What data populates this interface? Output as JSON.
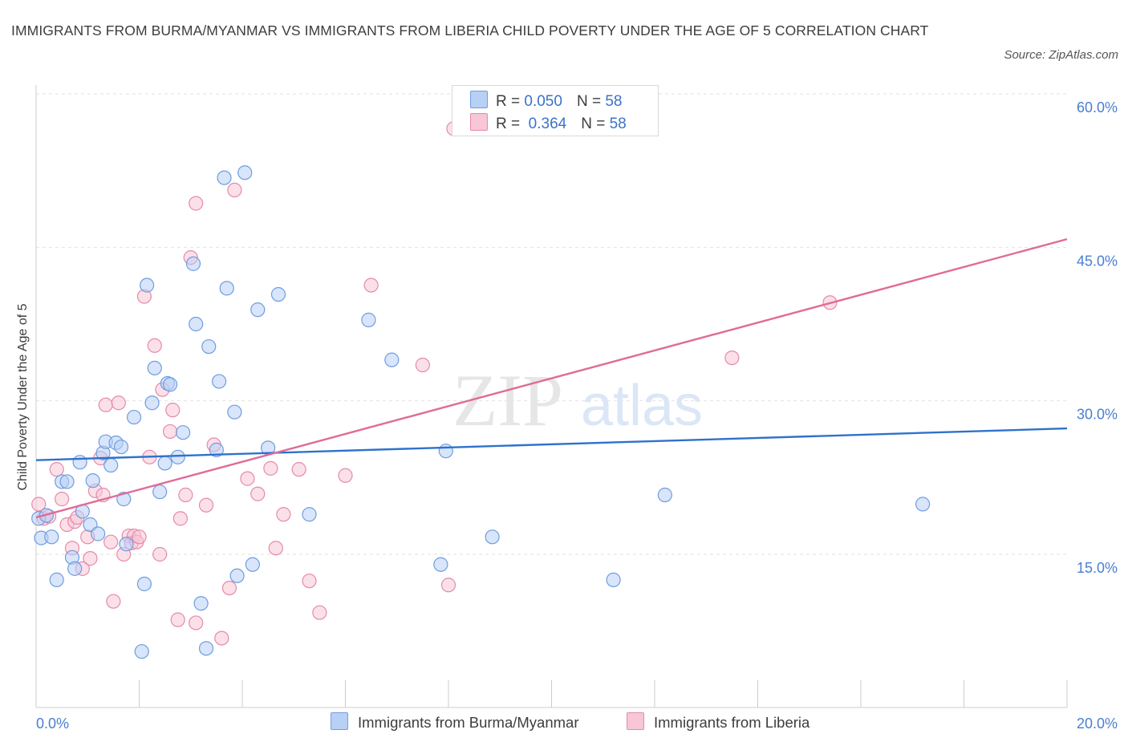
{
  "title": "IMMIGRANTS FROM BURMA/MYANMAR VS IMMIGRANTS FROM LIBERIA CHILD POVERTY UNDER THE AGE OF 5 CORRELATION CHART",
  "source": "Source: ZipAtlas.com",
  "watermark": {
    "zip": "ZIP",
    "atlas": "atlas"
  },
  "colors": {
    "burma_fill": "#b8d0f5",
    "burma_stroke": "#6f9de0",
    "burma_line": "#2e72cc",
    "liberia_fill": "#f8c6d6",
    "liberia_stroke": "#e58aaa",
    "liberia_line": "#e06b97",
    "grid": "#e2e2e2",
    "axis": "#cccccc",
    "tick_label": "#4a7fd0"
  },
  "legend": {
    "rows": [
      {
        "r_label": "R =",
        "r_value": "0.050",
        "n_label": "N =",
        "n_value": "58"
      },
      {
        "r_label": "R =",
        "r_value": "0.364",
        "n_label": "N =",
        "n_value": "58"
      }
    ]
  },
  "chart_data": {
    "type": "scatter",
    "title": "IMMIGRANTS FROM BURMA/MYANMAR VS IMMIGRANTS FROM LIBERIA CHILD POVERTY UNDER THE AGE OF 5 CORRELATION CHART",
    "xlabel": "",
    "ylabel": "Child Poverty Under the Age of 5",
    "xlim": [
      0,
      20
    ],
    "ylim": [
      0,
      63
    ],
    "x_ticks": [
      "0.0%",
      "20.0%"
    ],
    "y_ticks": [
      {
        "value": 15,
        "label": "15.0%"
      },
      {
        "value": 30,
        "label": "30.0%"
      },
      {
        "value": 45,
        "label": "45.0%"
      },
      {
        "value": 60,
        "label": "60.0%"
      }
    ],
    "grid": true,
    "legend_position": "bottom",
    "series": [
      {
        "name": "Immigrants from Burma/Myanmar",
        "trend": {
          "x": [
            0,
            20
          ],
          "y": [
            24.2,
            27.3
          ]
        },
        "points": [
          [
            0.05,
            18.5
          ],
          [
            0.1,
            16.6
          ],
          [
            0.2,
            18.8
          ],
          [
            0.3,
            16.7
          ],
          [
            0.4,
            12.5
          ],
          [
            0.5,
            22.1
          ],
          [
            0.6,
            22.1
          ],
          [
            0.7,
            14.7
          ],
          [
            0.75,
            13.6
          ],
          [
            0.85,
            24.0
          ],
          [
            0.9,
            19.2
          ],
          [
            1.05,
            17.9
          ],
          [
            1.1,
            22.2
          ],
          [
            1.2,
            17.0
          ],
          [
            1.3,
            24.9
          ],
          [
            1.35,
            26.0
          ],
          [
            1.45,
            23.7
          ],
          [
            1.55,
            25.9
          ],
          [
            1.65,
            25.5
          ],
          [
            1.7,
            20.4
          ],
          [
            1.75,
            16.0
          ],
          [
            1.9,
            28.4
          ],
          [
            2.05,
            5.5
          ],
          [
            2.1,
            12.1
          ],
          [
            2.15,
            41.3
          ],
          [
            2.25,
            29.8
          ],
          [
            2.3,
            33.2
          ],
          [
            2.4,
            21.1
          ],
          [
            2.5,
            23.9
          ],
          [
            2.55,
            31.7
          ],
          [
            2.6,
            31.6
          ],
          [
            2.75,
            24.5
          ],
          [
            2.85,
            26.9
          ],
          [
            3.05,
            43.4
          ],
          [
            3.1,
            37.5
          ],
          [
            3.2,
            10.2
          ],
          [
            3.3,
            5.8
          ],
          [
            3.35,
            35.3
          ],
          [
            3.5,
            25.2
          ],
          [
            3.55,
            31.9
          ],
          [
            3.65,
            51.8
          ],
          [
            3.7,
            41.0
          ],
          [
            3.85,
            28.9
          ],
          [
            3.9,
            12.9
          ],
          [
            4.05,
            52.3
          ],
          [
            4.2,
            14.0
          ],
          [
            4.3,
            38.9
          ],
          [
            4.5,
            25.4
          ],
          [
            4.7,
            40.4
          ],
          [
            5.3,
            18.9
          ],
          [
            6.45,
            37.9
          ],
          [
            6.9,
            34.0
          ],
          [
            7.85,
            14.0
          ],
          [
            7.95,
            25.1
          ],
          [
            8.85,
            16.7
          ],
          [
            11.2,
            12.5
          ],
          [
            12.2,
            20.8
          ],
          [
            17.2,
            19.9
          ]
        ]
      },
      {
        "name": "Immigrants from Liberia",
        "trend": {
          "x": [
            0,
            20
          ],
          "y": [
            18.6,
            45.8
          ]
        },
        "points": [
          [
            0.05,
            19.9
          ],
          [
            0.15,
            18.5
          ],
          [
            0.25,
            18.7
          ],
          [
            0.4,
            23.3
          ],
          [
            0.5,
            20.4
          ],
          [
            0.6,
            17.9
          ],
          [
            0.7,
            15.6
          ],
          [
            0.75,
            18.2
          ],
          [
            0.8,
            18.6
          ],
          [
            0.9,
            13.6
          ],
          [
            1.0,
            16.7
          ],
          [
            1.05,
            14.6
          ],
          [
            1.15,
            21.2
          ],
          [
            1.25,
            24.4
          ],
          [
            1.3,
            20.8
          ],
          [
            1.35,
            29.6
          ],
          [
            1.45,
            16.2
          ],
          [
            1.5,
            10.4
          ],
          [
            1.6,
            29.8
          ],
          [
            1.7,
            15.0
          ],
          [
            1.8,
            16.8
          ],
          [
            1.85,
            16.1
          ],
          [
            1.9,
            16.8
          ],
          [
            1.95,
            16.2
          ],
          [
            2.0,
            16.7
          ],
          [
            2.1,
            40.2
          ],
          [
            2.2,
            24.5
          ],
          [
            2.3,
            35.4
          ],
          [
            2.4,
            15.0
          ],
          [
            2.45,
            31.1
          ],
          [
            2.6,
            27.0
          ],
          [
            2.65,
            29.1
          ],
          [
            2.75,
            8.6
          ],
          [
            2.8,
            18.5
          ],
          [
            2.9,
            20.8
          ],
          [
            3.0,
            44.0
          ],
          [
            3.1,
            49.3
          ],
          [
            3.1,
            8.3
          ],
          [
            3.3,
            19.8
          ],
          [
            3.45,
            25.7
          ],
          [
            3.6,
            6.8
          ],
          [
            3.75,
            11.7
          ],
          [
            3.85,
            50.6
          ],
          [
            4.1,
            22.4
          ],
          [
            4.3,
            20.9
          ],
          [
            4.55,
            23.4
          ],
          [
            4.65,
            15.6
          ],
          [
            4.8,
            18.9
          ],
          [
            5.1,
            23.3
          ],
          [
            5.3,
            12.4
          ],
          [
            5.5,
            9.3
          ],
          [
            6.0,
            22.7
          ],
          [
            6.5,
            41.3
          ],
          [
            7.5,
            33.5
          ],
          [
            8.0,
            12.0
          ],
          [
            8.1,
            56.6
          ],
          [
            13.5,
            34.2
          ],
          [
            15.4,
            39.6
          ]
        ]
      }
    ]
  }
}
